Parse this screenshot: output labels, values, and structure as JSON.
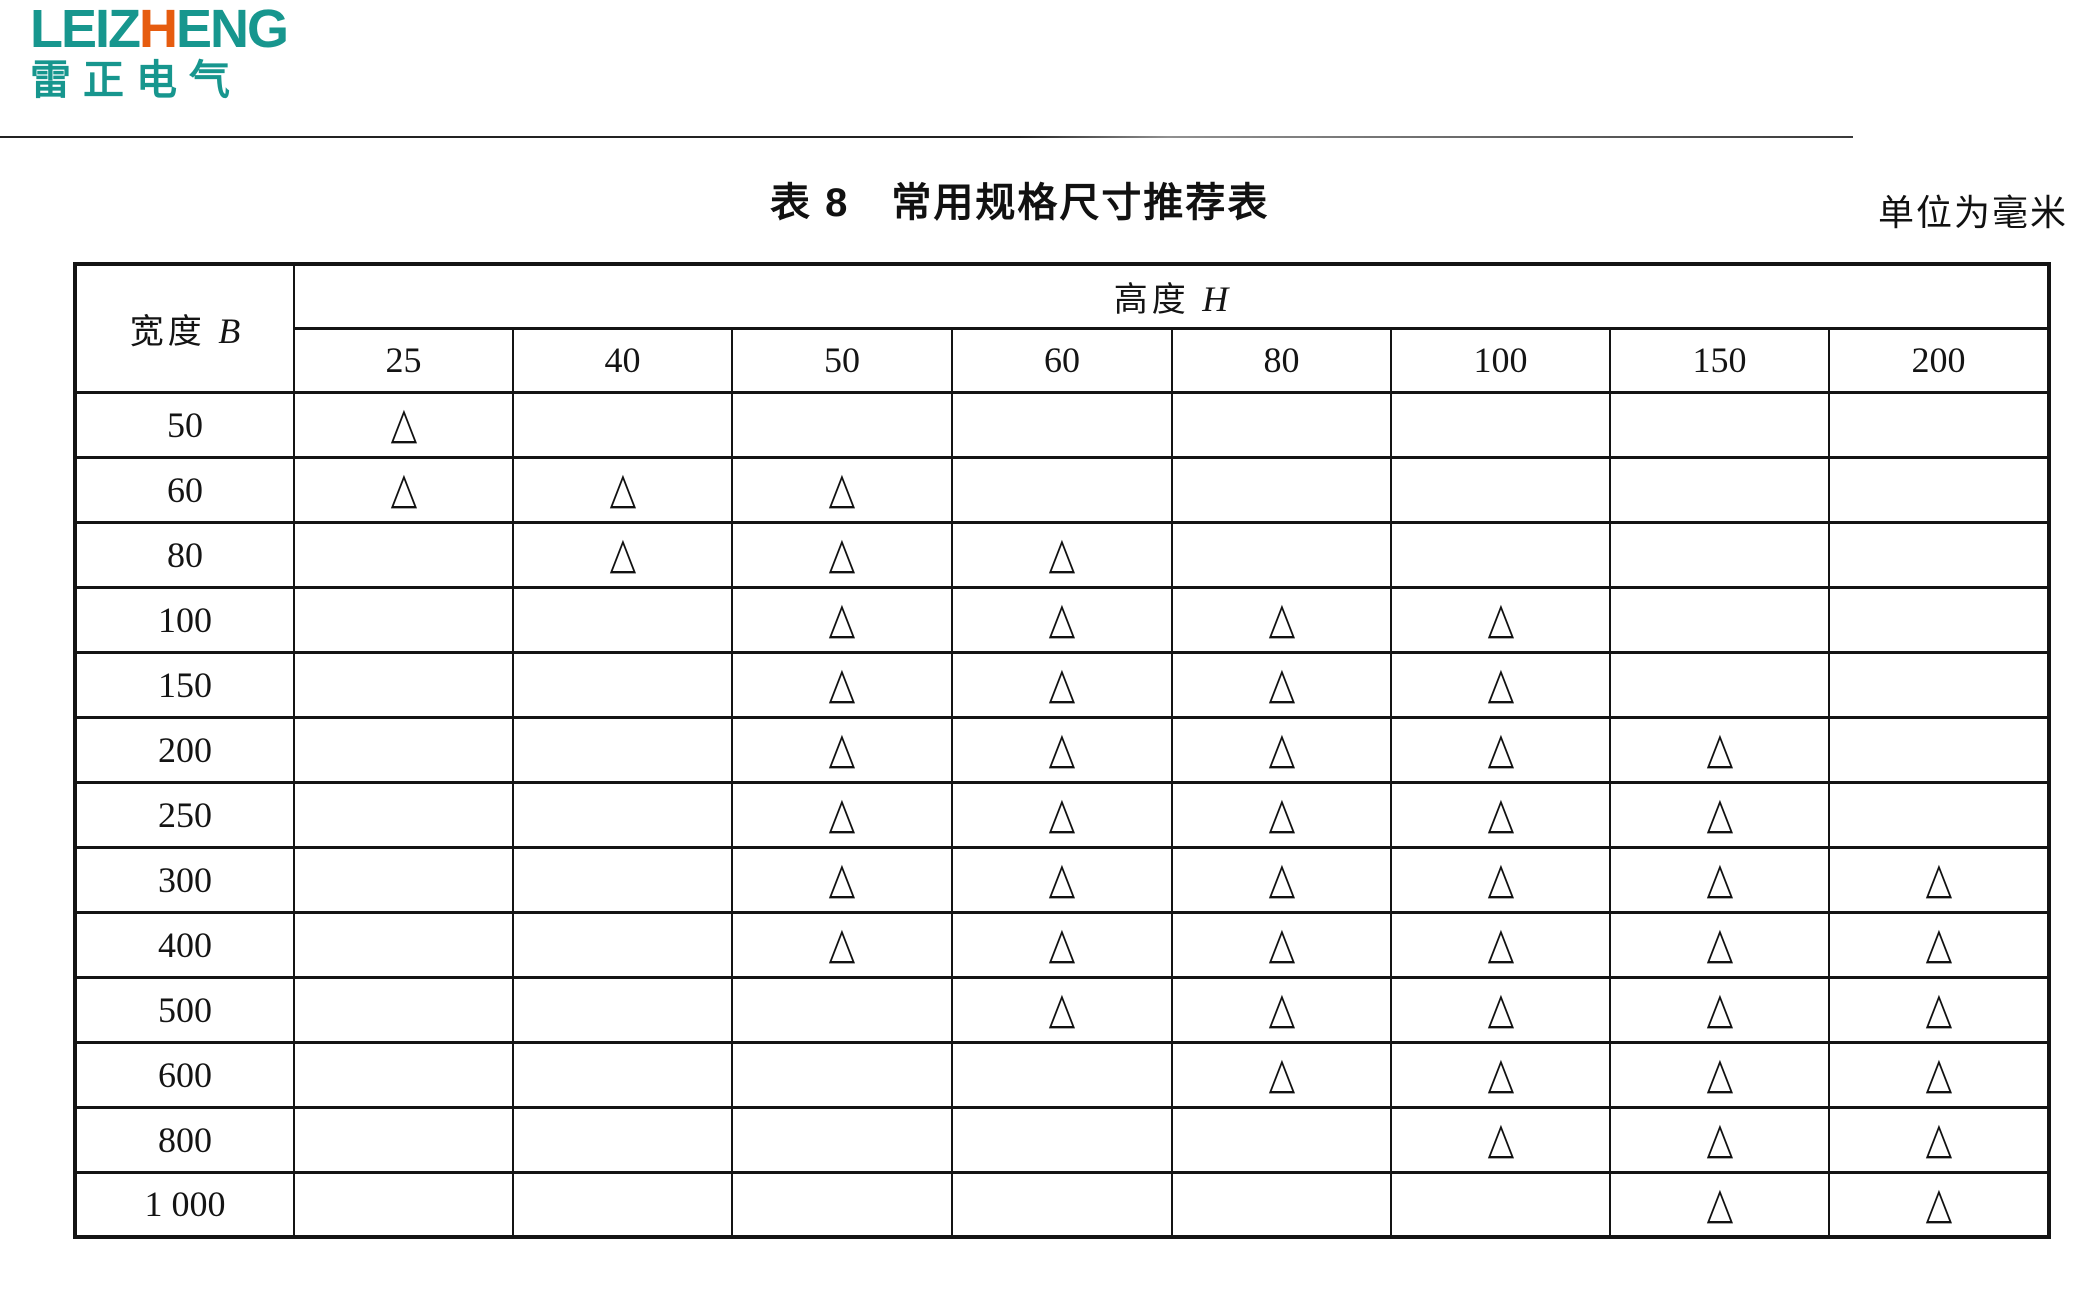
{
  "logo": {
    "en_left": "LEIZ",
    "en_accent": "H",
    "en_right": "ENG",
    "cn": "雷正电气",
    "teal": "#17968e",
    "orange": "#e65c0f"
  },
  "header": {
    "title": "表 8　常用规格尺寸推荐表",
    "unit": "单位为毫米"
  },
  "table": {
    "corner_text": "宽度 ",
    "corner_var": "B",
    "group_text": "高度 ",
    "group_var": "H",
    "col_headers": [
      "25",
      "40",
      "50",
      "60",
      "80",
      "100",
      "150",
      "200"
    ],
    "mark_glyph": "△",
    "rows": [
      {
        "label": "50",
        "marks": [
          1,
          0,
          0,
          0,
          0,
          0,
          0,
          0
        ]
      },
      {
        "label": "60",
        "marks": [
          1,
          1,
          1,
          0,
          0,
          0,
          0,
          0
        ]
      },
      {
        "label": "80",
        "marks": [
          0,
          1,
          1,
          1,
          0,
          0,
          0,
          0
        ]
      },
      {
        "label": "100",
        "marks": [
          0,
          0,
          1,
          1,
          1,
          1,
          0,
          0
        ]
      },
      {
        "label": "150",
        "marks": [
          0,
          0,
          1,
          1,
          1,
          1,
          0,
          0
        ]
      },
      {
        "label": "200",
        "marks": [
          0,
          0,
          1,
          1,
          1,
          1,
          1,
          0
        ]
      },
      {
        "label": "250",
        "marks": [
          0,
          0,
          1,
          1,
          1,
          1,
          1,
          0
        ]
      },
      {
        "label": "300",
        "marks": [
          0,
          0,
          1,
          1,
          1,
          1,
          1,
          1
        ]
      },
      {
        "label": "400",
        "marks": [
          0,
          0,
          1,
          1,
          1,
          1,
          1,
          1
        ]
      },
      {
        "label": "500",
        "marks": [
          0,
          0,
          0,
          1,
          1,
          1,
          1,
          1
        ]
      },
      {
        "label": "600",
        "marks": [
          0,
          0,
          0,
          0,
          1,
          1,
          1,
          1
        ]
      },
      {
        "label": "800",
        "marks": [
          0,
          0,
          0,
          0,
          0,
          1,
          1,
          1
        ]
      },
      {
        "label": "1 000",
        "marks": [
          0,
          0,
          0,
          0,
          0,
          0,
          1,
          1
        ]
      }
    ]
  }
}
